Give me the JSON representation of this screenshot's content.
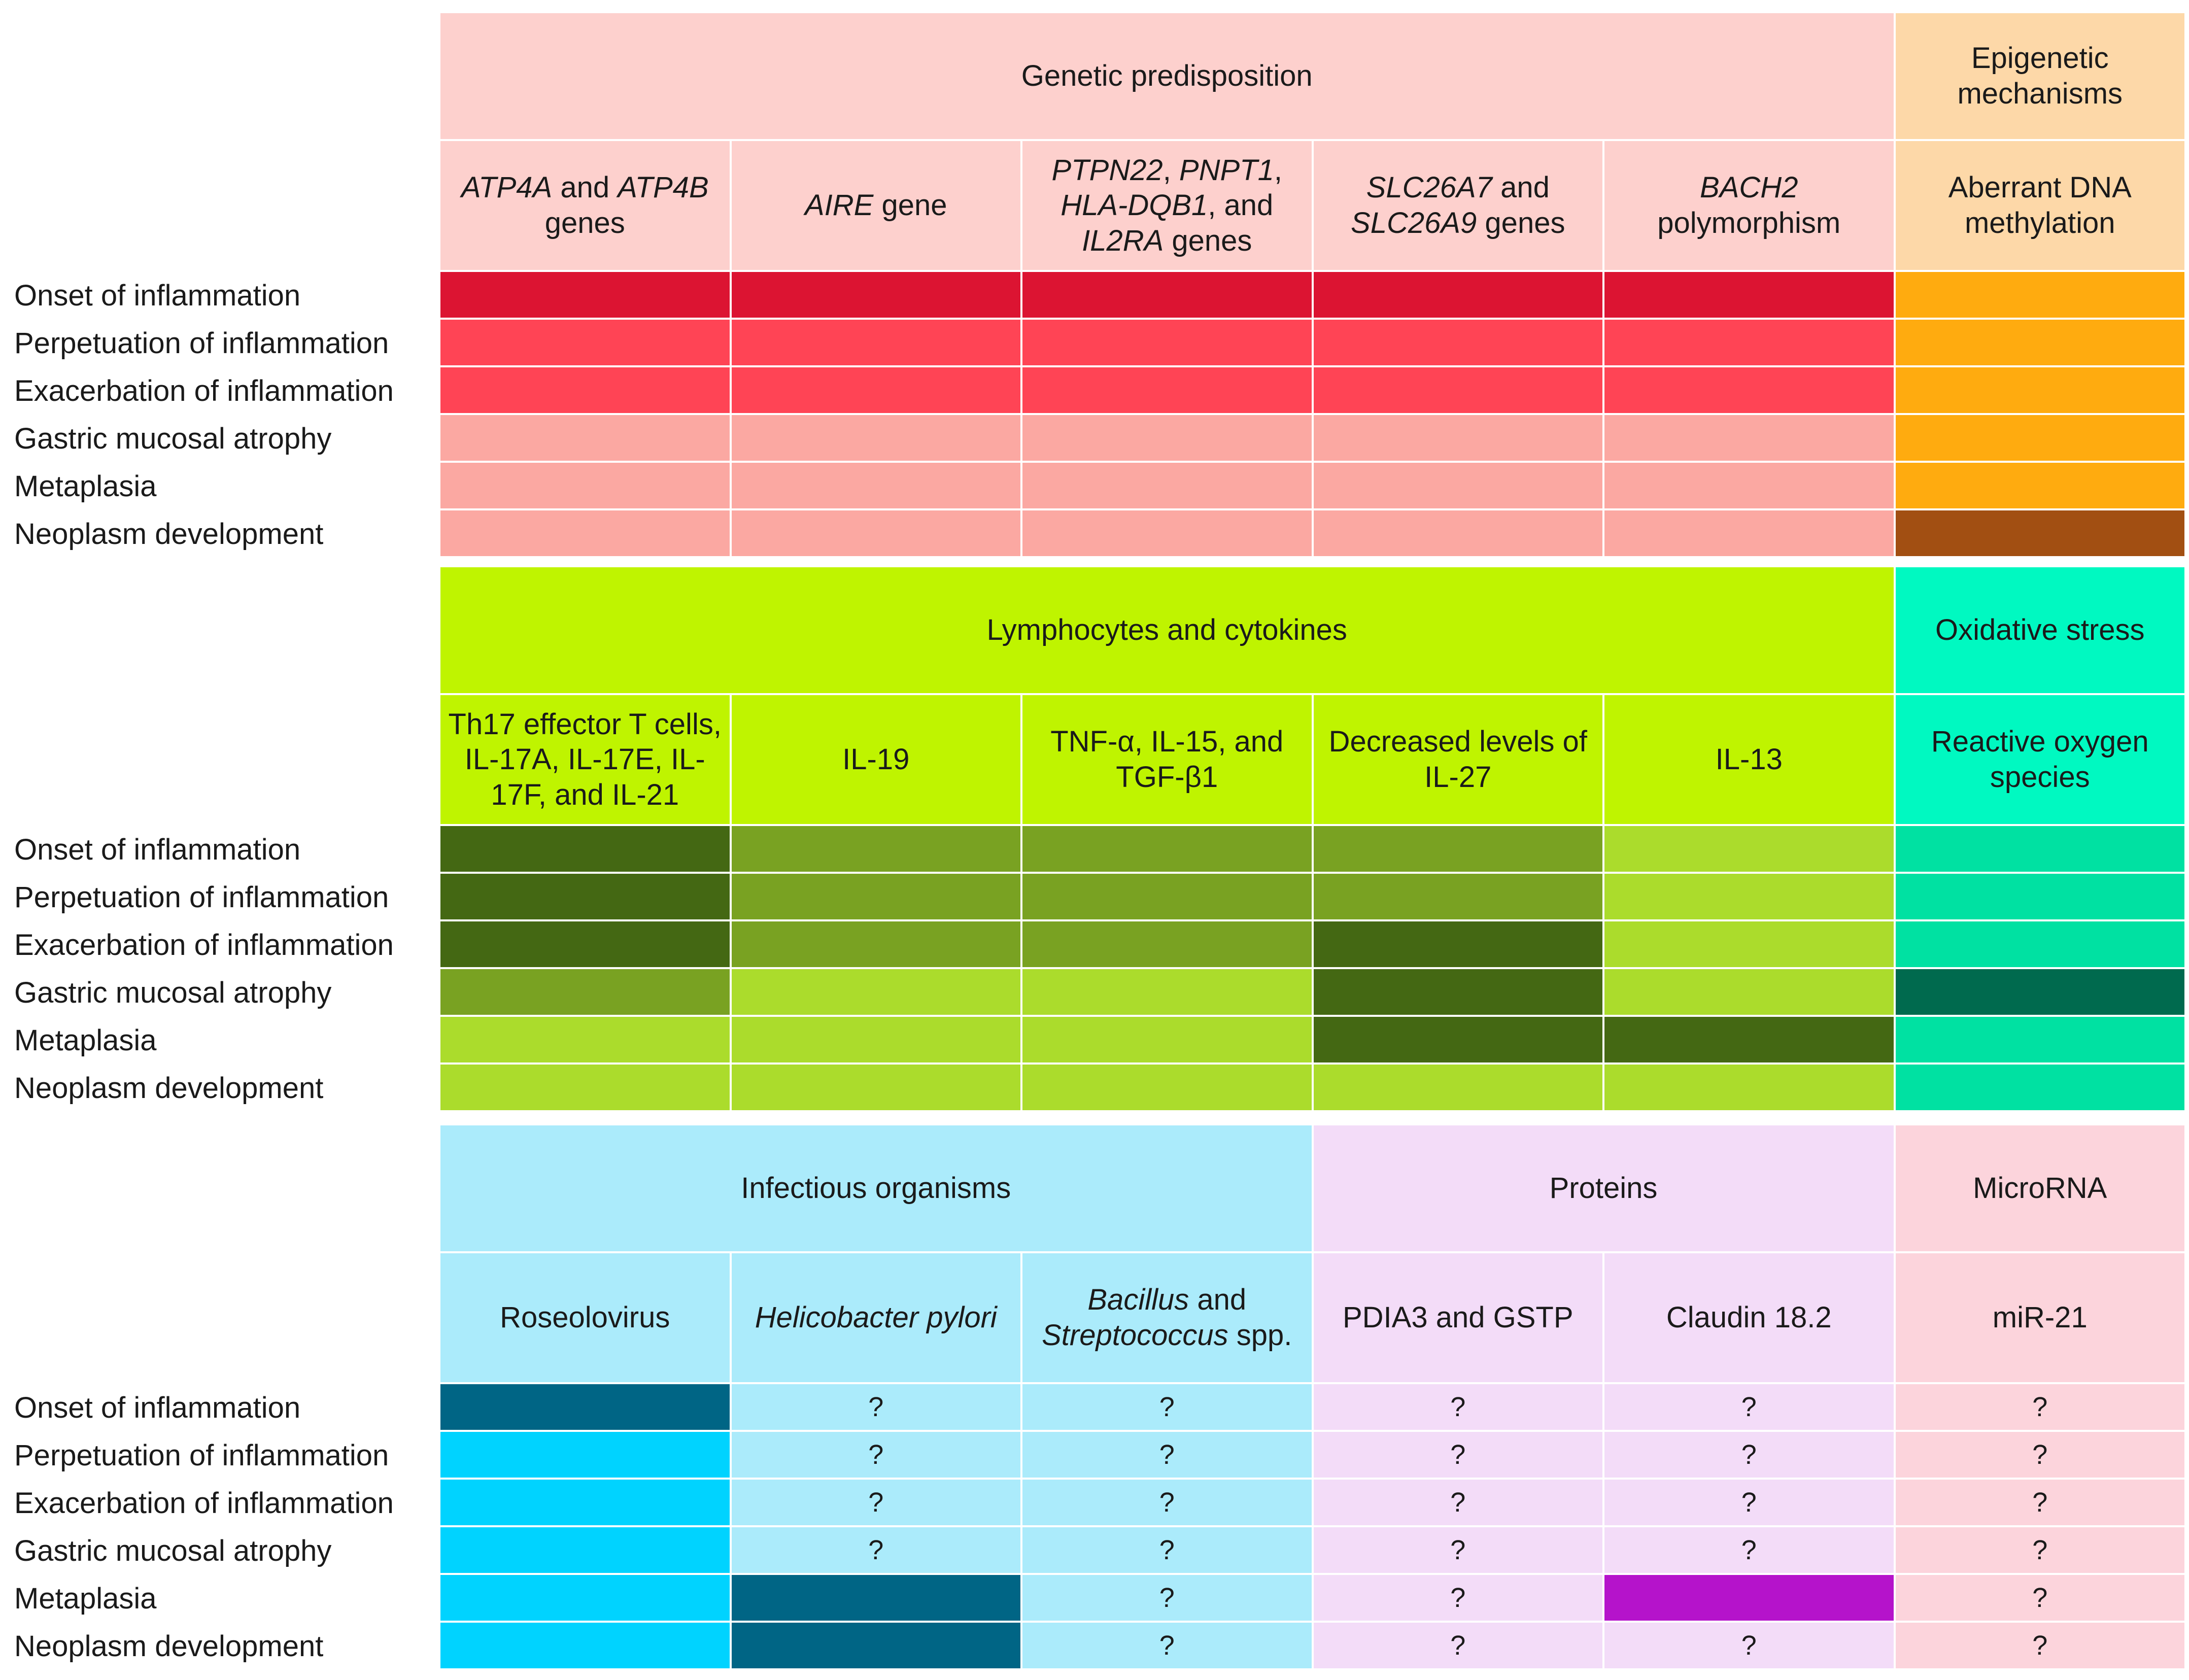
{
  "stages": [
    "Onset of inflammation",
    "Perpetuation of inflammation",
    "Exacerbation of inflammation",
    "Gastric mucosal atrophy",
    "Metaplasia",
    "Neoplasm development"
  ],
  "colors": {
    "genetic_header": "#fdd0cd",
    "epigenetic_header": "#fdd8a8",
    "lymphocytes_header": "#bff400",
    "oxidative_header": "#00f9c1",
    "infectious_header": "#abebfb",
    "proteins_header": "#f3dcf8",
    "microrna_header": "#fcd4dc",
    "genetic_strong": "#dc1432",
    "genetic_medium": "#ff4455",
    "genetic_weak": "#fba8a2",
    "epigenetic_medium": "#ffab0f",
    "epigenetic_strong": "#a24f12",
    "lymph_strong": "#446813",
    "lymph_medium": "#79a222",
    "lymph_weak": "#abdc2c",
    "oxidative_medium": "#00e1a2",
    "oxidative_strong": "#006a4e",
    "infect_strong": "#006585",
    "infect_medium": "#00d3ff",
    "infect_weak": "#abebfb",
    "protein_strong": "#b513cb",
    "protein_weak": "#f3dcf8",
    "microrna_weak": "#fcd4dc"
  },
  "panels": [
    {
      "groups": [
        {
          "label": "Genetic predisposition",
          "span": 5,
          "color": "genetic_header"
        },
        {
          "label": "Epigenetic mechanisms",
          "span": 1,
          "color": "epigenetic_header"
        }
      ],
      "factors": [
        {
          "parts": [
            {
              "t": "ATP4A",
              "i": true
            },
            {
              "t": " and "
            },
            {
              "t": "ATP4B",
              "i": true
            },
            {
              "t": " genes"
            }
          ],
          "color": "genetic_header"
        },
        {
          "parts": [
            {
              "t": "AIRE",
              "i": true
            },
            {
              "t": " gene"
            }
          ],
          "color": "genetic_header"
        },
        {
          "parts": [
            {
              "t": "PTPN22",
              "i": true
            },
            {
              "t": ", "
            },
            {
              "t": "PNPT1",
              "i": true
            },
            {
              "t": ", "
            },
            {
              "t": "HLA-DQB1",
              "i": true
            },
            {
              "t": ", and "
            },
            {
              "t": "IL2RA",
              "i": true
            },
            {
              "t": " genes"
            }
          ],
          "color": "genetic_header"
        },
        {
          "parts": [
            {
              "t": "SLC26A7",
              "i": true
            },
            {
              "t": " and "
            },
            {
              "t": "SLC26A9",
              "i": true
            },
            {
              "t": " genes"
            }
          ],
          "color": "genetic_header"
        },
        {
          "parts": [
            {
              "t": "BACH2",
              "i": true
            },
            {
              "t": " polymorphism"
            }
          ],
          "color": "genetic_header"
        },
        {
          "parts": [
            {
              "t": "Aberrant DNA methylation"
            }
          ],
          "color": "epigenetic_header"
        }
      ],
      "cells": [
        [
          "genetic_strong",
          "genetic_strong",
          "genetic_strong",
          "genetic_strong",
          "genetic_strong",
          "epigenetic_medium"
        ],
        [
          "genetic_medium",
          "genetic_medium",
          "genetic_medium",
          "genetic_medium",
          "genetic_medium",
          "epigenetic_medium"
        ],
        [
          "genetic_medium",
          "genetic_medium",
          "genetic_medium",
          "genetic_medium",
          "genetic_medium",
          "epigenetic_medium"
        ],
        [
          "genetic_weak",
          "genetic_weak",
          "genetic_weak",
          "genetic_weak",
          "genetic_weak",
          "epigenetic_medium"
        ],
        [
          "genetic_weak",
          "genetic_weak",
          "genetic_weak",
          "genetic_weak",
          "genetic_weak",
          "epigenetic_medium"
        ],
        [
          "genetic_weak",
          "genetic_weak",
          "genetic_weak",
          "genetic_weak",
          "genetic_weak",
          "epigenetic_strong"
        ]
      ],
      "unknown": [
        [
          false,
          false,
          false,
          false,
          false,
          false
        ],
        [
          false,
          false,
          false,
          false,
          false,
          false
        ],
        [
          false,
          false,
          false,
          false,
          false,
          false
        ],
        [
          false,
          false,
          false,
          false,
          false,
          false
        ],
        [
          false,
          false,
          false,
          false,
          false,
          false
        ],
        [
          false,
          false,
          false,
          false,
          false,
          false
        ]
      ]
    },
    {
      "groups": [
        {
          "label": "Lymphocytes and cytokines",
          "span": 5,
          "color": "lymphocytes_header"
        },
        {
          "label": "Oxidative stress",
          "span": 1,
          "color": "oxidative_header"
        }
      ],
      "factors": [
        {
          "parts": [
            {
              "t": "Th17 effector T cells, IL-17A, IL-17E, IL-17F, and IL-21"
            }
          ],
          "color": "lymphocytes_header"
        },
        {
          "parts": [
            {
              "t": "IL-19"
            }
          ],
          "color": "lymphocytes_header"
        },
        {
          "parts": [
            {
              "t": "TNF-α, IL-15, and TGF-β1"
            }
          ],
          "color": "lymphocytes_header"
        },
        {
          "parts": [
            {
              "t": "Decreased levels of IL-27"
            }
          ],
          "color": "lymphocytes_header"
        },
        {
          "parts": [
            {
              "t": "IL-13"
            }
          ],
          "color": "lymphocytes_header"
        },
        {
          "parts": [
            {
              "t": "Reactive oxygen species"
            }
          ],
          "color": "oxidative_header"
        }
      ],
      "cells": [
        [
          "lymph_strong",
          "lymph_medium",
          "lymph_medium",
          "lymph_medium",
          "lymph_weak",
          "oxidative_medium"
        ],
        [
          "lymph_strong",
          "lymph_medium",
          "lymph_medium",
          "lymph_medium",
          "lymph_weak",
          "oxidative_medium"
        ],
        [
          "lymph_strong",
          "lymph_medium",
          "lymph_medium",
          "lymph_strong",
          "lymph_weak",
          "oxidative_medium"
        ],
        [
          "lymph_medium",
          "lymph_weak",
          "lymph_weak",
          "lymph_strong",
          "lymph_weak",
          "oxidative_strong"
        ],
        [
          "lymph_weak",
          "lymph_weak",
          "lymph_weak",
          "lymph_strong",
          "lymph_strong",
          "oxidative_medium"
        ],
        [
          "lymph_weak",
          "lymph_weak",
          "lymph_weak",
          "lymph_weak",
          "lymph_weak",
          "oxidative_medium"
        ]
      ],
      "unknown": [
        [
          false,
          false,
          false,
          false,
          false,
          false
        ],
        [
          false,
          false,
          false,
          false,
          false,
          false
        ],
        [
          false,
          false,
          false,
          false,
          false,
          false
        ],
        [
          false,
          false,
          false,
          false,
          false,
          false
        ],
        [
          false,
          false,
          false,
          false,
          false,
          false
        ],
        [
          false,
          false,
          false,
          false,
          false,
          false
        ]
      ]
    },
    {
      "groups": [
        {
          "label": "Infectious organisms",
          "span": 3,
          "color": "infectious_header"
        },
        {
          "label": "Proteins",
          "span": 2,
          "color": "proteins_header"
        },
        {
          "label": "MicroRNA",
          "span": 1,
          "color": "microrna_header"
        }
      ],
      "factors": [
        {
          "parts": [
            {
              "t": "Roseolovirus"
            }
          ],
          "color": "infectious_header"
        },
        {
          "parts": [
            {
              "t": "Helicobacter pylori",
              "i": true
            }
          ],
          "color": "infectious_header"
        },
        {
          "parts": [
            {
              "t": "Bacillus",
              "i": true
            },
            {
              "t": " and "
            },
            {
              "t": "Streptococcus",
              "i": true
            },
            {
              "t": " spp."
            }
          ],
          "color": "infectious_header"
        },
        {
          "parts": [
            {
              "t": "PDIA3 and GSTP"
            }
          ],
          "color": "proteins_header"
        },
        {
          "parts": [
            {
              "t": "Claudin 18.2"
            }
          ],
          "color": "proteins_header"
        },
        {
          "parts": [
            {
              "t": "miR-21"
            }
          ],
          "color": "microrna_header"
        }
      ],
      "cells": [
        [
          "infect_strong",
          "infect_weak",
          "infect_weak",
          "protein_weak",
          "protein_weak",
          "microrna_weak"
        ],
        [
          "infect_medium",
          "infect_weak",
          "infect_weak",
          "protein_weak",
          "protein_weak",
          "microrna_weak"
        ],
        [
          "infect_medium",
          "infect_weak",
          "infect_weak",
          "protein_weak",
          "protein_weak",
          "microrna_weak"
        ],
        [
          "infect_medium",
          "infect_weak",
          "infect_weak",
          "protein_weak",
          "protein_weak",
          "microrna_weak"
        ],
        [
          "infect_medium",
          "infect_strong",
          "infect_weak",
          "protein_weak",
          "protein_strong",
          "microrna_weak"
        ],
        [
          "infect_medium",
          "infect_strong",
          "infect_weak",
          "protein_weak",
          "protein_weak",
          "microrna_weak"
        ]
      ],
      "unknown": [
        [
          false,
          true,
          true,
          true,
          true,
          true
        ],
        [
          false,
          true,
          true,
          true,
          true,
          true
        ],
        [
          false,
          true,
          true,
          true,
          true,
          true
        ],
        [
          false,
          true,
          true,
          true,
          true,
          true
        ],
        [
          false,
          false,
          true,
          true,
          false,
          true
        ],
        [
          false,
          false,
          true,
          true,
          true,
          true
        ]
      ]
    }
  ],
  "unknown_mark": "?"
}
